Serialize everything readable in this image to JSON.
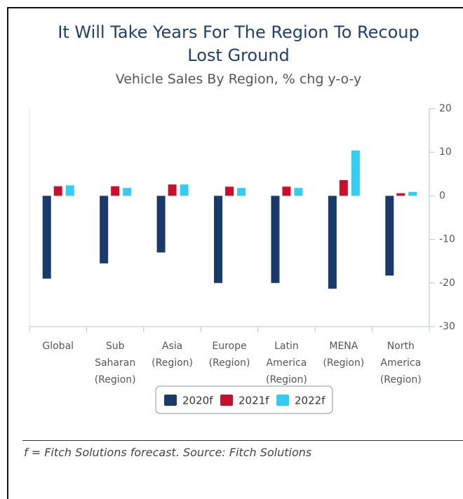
{
  "chart_data": {
    "type": "bar",
    "title": "It Will Take Years For The Region To Recoup Lost Ground",
    "subtitle": "Vehicle Sales By Region, % chg y-o-y",
    "note": "f = Fitch Solutions forecast. Source: Fitch Solutions",
    "categories": [
      [
        "Global"
      ],
      [
        "Sub",
        "Saharan",
        "(Region)"
      ],
      [
        "Asia",
        "(Region)"
      ],
      [
        "Europe",
        "(Region)"
      ],
      [
        "Latin",
        "America",
        "(Region)"
      ],
      [
        "MENA",
        "(Region)"
      ],
      [
        "North",
        "America",
        "(Region)"
      ]
    ],
    "series": [
      {
        "name": "2020f",
        "color": "#1a3a6b",
        "values": [
          -19,
          -15.5,
          -13,
          -20,
          -20,
          -21.3,
          -18.3
        ]
      },
      {
        "name": "2021f",
        "color": "#c8102e",
        "values": [
          2.2,
          2.2,
          2.6,
          2.1,
          2.1,
          3.6,
          0.6
        ]
      },
      {
        "name": "2022f",
        "color": "#33ccf5",
        "values": [
          2.4,
          1.8,
          2.6,
          1.8,
          1.8,
          10.4,
          0.9
        ]
      }
    ],
    "ylim": [
      -30,
      20
    ],
    "yticks": [
      20,
      10,
      0,
      -10,
      -20,
      -30
    ],
    "axis_side": "right"
  }
}
